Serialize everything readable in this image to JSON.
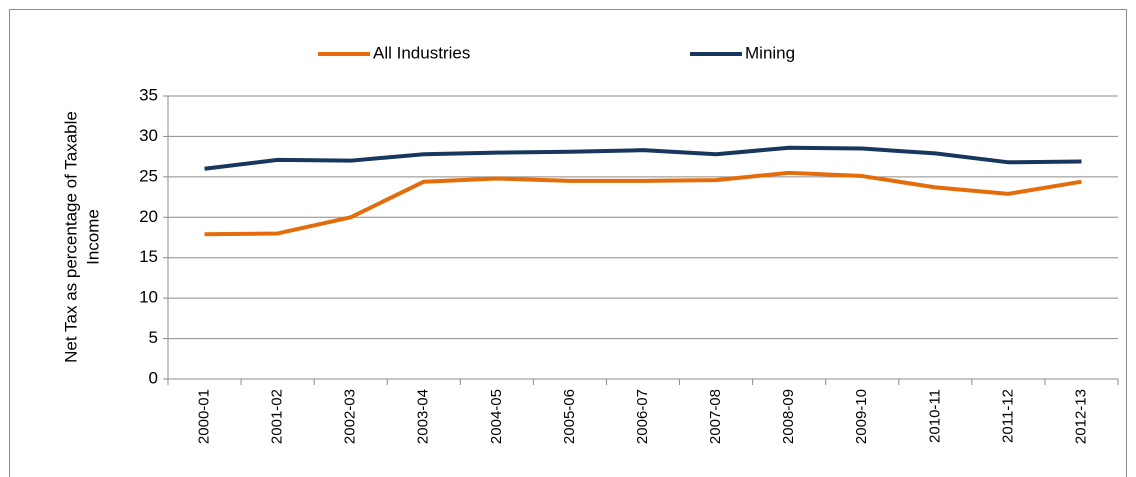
{
  "chart_data": {
    "type": "line",
    "y_label": [
      "Net Tax as percentage of Taxable",
      "Income"
    ],
    "categories": [
      "2000-01",
      "2001-02",
      "2002-03",
      "2003-04",
      "2004-05",
      "2005-06",
      "2006-07",
      "2007-08",
      "2008-09",
      "2009-10",
      "2010-11",
      "2011-12",
      "2012-13"
    ],
    "series": [
      {
        "name": "All Industries",
        "color": "#e46c0a",
        "values": [
          17.9,
          18.0,
          20.0,
          24.4,
          24.8,
          24.5,
          24.5,
          24.6,
          25.5,
          25.1,
          23.7,
          22.9,
          24.4
        ]
      },
      {
        "name": "Mining",
        "color": "#17375e",
        "values": [
          26.0,
          27.1,
          27.0,
          27.8,
          28.0,
          28.1,
          28.3,
          27.8,
          28.6,
          28.5,
          27.9,
          26.8,
          26.9
        ]
      }
    ],
    "ylim": [
      0,
      35
    ],
    "yticks": [
      0,
      5,
      10,
      15,
      20,
      25,
      30,
      35
    ],
    "grid": true,
    "legend": "top"
  }
}
